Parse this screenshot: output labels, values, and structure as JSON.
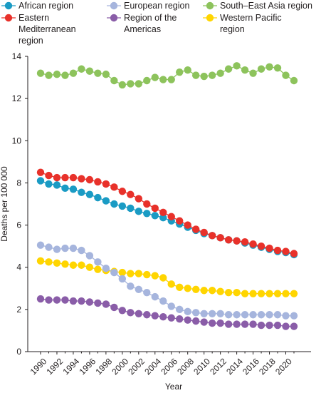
{
  "chart_data": {
    "type": "line",
    "xlabel": "Year",
    "ylabel": "Deaths per 100 000",
    "ylim": [
      0,
      14
    ],
    "xlim": [
      1990,
      2021
    ],
    "y_ticks": [
      "0",
      "2",
      "4",
      "6",
      "8",
      "10",
      "12",
      "14"
    ],
    "x_ticks": [
      "1990",
      "1992",
      "1994",
      "1996",
      "1998",
      "2000",
      "2002",
      "2004",
      "2006",
      "2008",
      "2010",
      "2012",
      "2014",
      "2016",
      "2018",
      "2020"
    ],
    "grid": false,
    "legend_position": "top",
    "x": [
      1990,
      1991,
      1992,
      1993,
      1994,
      1995,
      1996,
      1997,
      1998,
      1999,
      2000,
      2001,
      2002,
      2003,
      2004,
      2005,
      2006,
      2007,
      2008,
      2009,
      2010,
      2011,
      2012,
      2013,
      2014,
      2015,
      2016,
      2017,
      2018,
      2019,
      2020,
      2021
    ],
    "series": [
      {
        "name": "African region",
        "legend_lines": [
          "African region"
        ],
        "color": "#1a9bc4",
        "values": [
          8.1,
          7.95,
          7.9,
          7.75,
          7.7,
          7.55,
          7.45,
          7.3,
          7.15,
          7.0,
          6.9,
          6.8,
          6.65,
          6.55,
          6.45,
          6.35,
          6.2,
          6.05,
          5.9,
          5.75,
          5.6,
          5.5,
          5.4,
          5.3,
          5.25,
          5.15,
          5.05,
          4.95,
          4.85,
          4.75,
          4.7,
          4.6
        ]
      },
      {
        "name": "Eastern Mediterranean region",
        "legend_lines": [
          "Eastern",
          "Mediterranean",
          "region"
        ],
        "color": "#e8312a",
        "values": [
          8.5,
          8.35,
          8.25,
          8.25,
          8.25,
          8.2,
          8.15,
          8.05,
          7.95,
          7.8,
          7.6,
          7.45,
          7.25,
          7.0,
          6.8,
          6.6,
          6.4,
          6.2,
          6.0,
          5.8,
          5.65,
          5.5,
          5.4,
          5.3,
          5.25,
          5.2,
          5.1,
          5.0,
          4.9,
          4.8,
          4.75,
          4.65
        ]
      },
      {
        "name": "European region",
        "legend_lines": [
          "European region"
        ],
        "color": "#a6b5dd",
        "values": [
          5.05,
          4.95,
          4.85,
          4.9,
          4.9,
          4.8,
          4.55,
          4.25,
          3.95,
          3.75,
          3.45,
          3.1,
          2.95,
          2.8,
          2.6,
          2.4,
          2.15,
          2.0,
          1.9,
          1.85,
          1.8,
          1.8,
          1.8,
          1.75,
          1.75,
          1.75,
          1.75,
          1.75,
          1.75,
          1.75,
          1.7,
          1.7
        ]
      },
      {
        "name": "Region of the Americas",
        "legend_lines": [
          "Region of the",
          "Americas"
        ],
        "color": "#8a5da8",
        "values": [
          2.5,
          2.45,
          2.45,
          2.45,
          2.4,
          2.4,
          2.35,
          2.3,
          2.25,
          2.1,
          1.95,
          1.85,
          1.8,
          1.75,
          1.7,
          1.65,
          1.6,
          1.55,
          1.5,
          1.45,
          1.4,
          1.35,
          1.35,
          1.3,
          1.3,
          1.3,
          1.3,
          1.25,
          1.25,
          1.25,
          1.2,
          1.2
        ]
      },
      {
        "name": "South–East Asia region",
        "legend_lines": [
          "South–East Asia region"
        ],
        "color": "#8dc35c",
        "values": [
          13.2,
          13.1,
          13.15,
          13.1,
          13.2,
          13.4,
          13.3,
          13.2,
          13.15,
          12.85,
          12.65,
          12.7,
          12.7,
          12.85,
          13.0,
          12.9,
          12.9,
          13.25,
          13.35,
          13.1,
          13.05,
          13.1,
          13.2,
          13.4,
          13.55,
          13.35,
          13.2,
          13.4,
          13.5,
          13.45,
          13.1,
          12.85
        ]
      },
      {
        "name": "Western Pacific region",
        "legend_lines": [
          "Western Pacific",
          "region"
        ],
        "color": "#ffd500",
        "values": [
          4.3,
          4.25,
          4.2,
          4.15,
          4.1,
          4.1,
          4.0,
          3.9,
          3.85,
          3.8,
          3.75,
          3.7,
          3.7,
          3.65,
          3.6,
          3.5,
          3.2,
          3.05,
          3.0,
          2.95,
          2.9,
          2.9,
          2.85,
          2.8,
          2.8,
          2.75,
          2.75,
          2.75,
          2.75,
          2.75,
          2.75,
          2.75
        ]
      }
    ]
  }
}
